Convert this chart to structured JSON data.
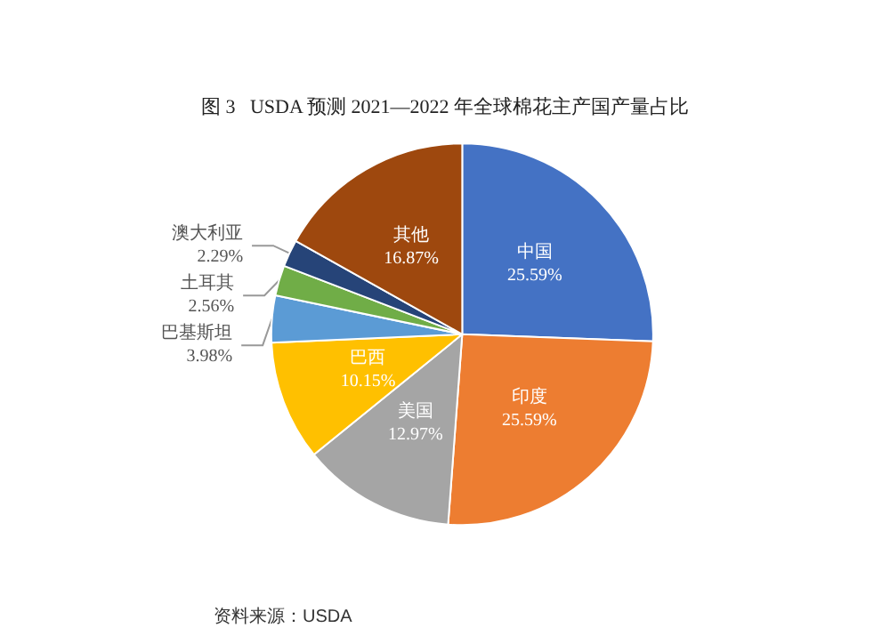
{
  "chart_data": {
    "type": "pie",
    "title": "图 3   USDA 预测 2021—2022 年全球棉花主产国产量占比",
    "categories": [
      "中国",
      "印度",
      "美国",
      "巴西",
      "巴基斯坦",
      "土耳其",
      "澳大利亚",
      "其他"
    ],
    "values": [
      25.59,
      25.59,
      12.97,
      10.15,
      3.98,
      2.56,
      2.29,
      16.87
    ],
    "colors": [
      "#4472c4",
      "#ed7d31",
      "#a5a5a5",
      "#ffc000",
      "#5b9bd5",
      "#70ad47",
      "#264478",
      "#9e480e"
    ],
    "value_labels": [
      "25.59%",
      "25.59%",
      "12.97%",
      "10.15%",
      "3.98%",
      "2.56%",
      "2.29%",
      "16.87%"
    ],
    "annotations": [
      "资料来源：USDA"
    ]
  }
}
